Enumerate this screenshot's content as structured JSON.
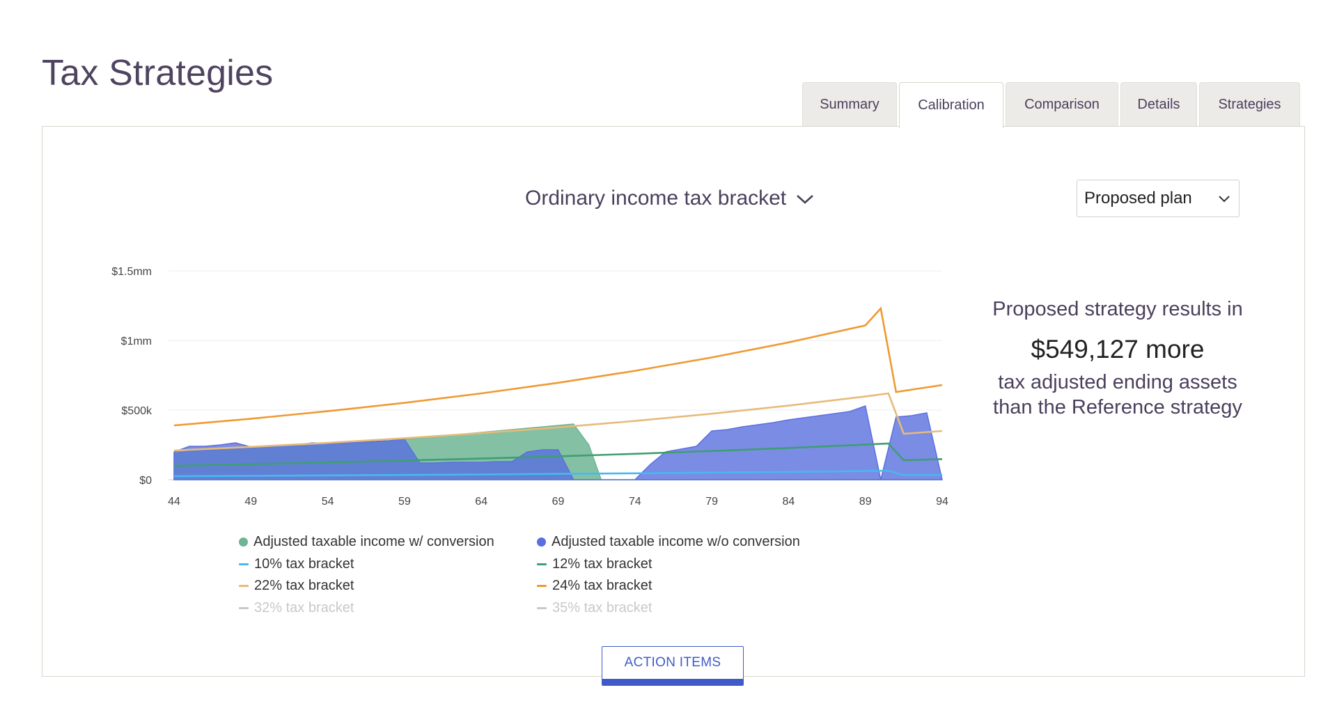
{
  "page": {
    "title": "Tax Strategies"
  },
  "tabs": [
    {
      "label": "Summary",
      "active": false
    },
    {
      "label": "Calibration",
      "active": true
    },
    {
      "label": "Comparison",
      "active": false
    },
    {
      "label": "Details",
      "active": false
    },
    {
      "label": "Strategies",
      "active": false
    }
  ],
  "chart_header": {
    "title": "Ordinary income tax bracket",
    "icon": "chevron-down-icon"
  },
  "plan_select": {
    "value": "Proposed plan",
    "icon": "chevron-down-icon"
  },
  "result": {
    "line1": "Proposed strategy results in",
    "amount": "$549,127 more",
    "line2": "tax adjusted ending assets",
    "line3": "than the Reference strategy"
  },
  "action_button": {
    "label": "ACTION ITEMS"
  },
  "colors": {
    "with_conversion": "#6fb594",
    "without_conversion": "#5a6fdf",
    "bracket_10": "#47b8f0",
    "bracket_12": "#3f9e72",
    "bracket_22": "#e6bb7a",
    "bracket_24": "#ee9a32",
    "disabled": "#c8c8c8"
  },
  "chart_data": {
    "type": "area",
    "ylim": [
      0,
      1500000
    ],
    "xlim": [
      44,
      94
    ],
    "yticks": [
      {
        "value": 0,
        "label": "$0"
      },
      {
        "value": 500000,
        "label": "$500k"
      },
      {
        "value": 1000000,
        "label": "$1mm"
      },
      {
        "value": 1500000,
        "label": "$1.5mm"
      }
    ],
    "xticks": [
      "44",
      "49",
      "54",
      "59",
      "64",
      "69",
      "74",
      "79",
      "84",
      "89",
      "94"
    ],
    "grid": true,
    "legend_position": "bottom",
    "legend": [
      {
        "label": "Adjusted taxable income w/ conversion",
        "marker": "dot",
        "color": "#6fb594",
        "enabled": true
      },
      {
        "label": "Adjusted taxable income w/o conversion",
        "marker": "dot",
        "color": "#5a6fdf",
        "enabled": true
      },
      {
        "label": "10% tax bracket",
        "marker": "line",
        "color": "#47b8f0",
        "enabled": true
      },
      {
        "label": "12% tax bracket",
        "marker": "line",
        "color": "#3f9e72",
        "enabled": true
      },
      {
        "label": "22% tax bracket",
        "marker": "line",
        "color": "#e6bb7a",
        "enabled": true
      },
      {
        "label": "24% tax bracket",
        "marker": "line",
        "color": "#ee9a32",
        "enabled": true
      },
      {
        "label": "32% tax bracket",
        "marker": "line",
        "color": "#c8c8c8",
        "enabled": false
      },
      {
        "label": "35% tax bracket",
        "marker": "line",
        "color": "#c8c8c8",
        "enabled": false
      }
    ],
    "series": [
      {
        "name": "Adjusted taxable income w/ conversion",
        "kind": "area",
        "color": "#6fb594",
        "points": [
          [
            44,
            190000
          ],
          [
            45,
            205000
          ],
          [
            46,
            210000
          ],
          [
            47,
            215000
          ],
          [
            48,
            220000
          ],
          [
            49,
            225000
          ],
          [
            50,
            230000
          ],
          [
            51,
            235000
          ],
          [
            52,
            240000
          ],
          [
            53,
            245000
          ],
          [
            54,
            250000
          ],
          [
            55,
            255000
          ],
          [
            56,
            262000
          ],
          [
            57,
            270000
          ],
          [
            58,
            280000
          ],
          [
            59,
            290000
          ],
          [
            60,
            300000
          ],
          [
            61,
            310000
          ],
          [
            62,
            320000
          ],
          [
            63,
            330000
          ],
          [
            64,
            340000
          ],
          [
            65,
            350000
          ],
          [
            66,
            360000
          ],
          [
            67,
            370000
          ],
          [
            68,
            380000
          ],
          [
            69,
            390000
          ],
          [
            70,
            400000
          ],
          [
            71,
            250000
          ],
          [
            71.8,
            0
          ],
          [
            94,
            0
          ]
        ]
      },
      {
        "name": "Adjusted taxable income w/o conversion",
        "kind": "area",
        "color": "#5a6fdf",
        "points": [
          [
            44,
            200000
          ],
          [
            45,
            240000
          ],
          [
            46,
            240000
          ],
          [
            47,
            250000
          ],
          [
            48,
            265000
          ],
          [
            49,
            235000
          ],
          [
            50,
            240000
          ],
          [
            51,
            245000
          ],
          [
            52,
            250000
          ],
          [
            53,
            265000
          ],
          [
            54,
            260000
          ],
          [
            55,
            265000
          ],
          [
            56,
            270000
          ],
          [
            57,
            275000
          ],
          [
            58,
            280000
          ],
          [
            59,
            290000
          ],
          [
            60,
            120000
          ],
          [
            61,
            120000
          ],
          [
            62,
            125000
          ],
          [
            63,
            125000
          ],
          [
            64,
            125000
          ],
          [
            65,
            130000
          ],
          [
            66,
            130000
          ],
          [
            67,
            200000
          ],
          [
            68,
            215000
          ],
          [
            69,
            215000
          ],
          [
            70,
            0
          ],
          [
            71,
            0
          ],
          [
            72,
            0
          ],
          [
            73,
            0
          ],
          [
            74,
            0
          ],
          [
            75,
            110000
          ],
          [
            76,
            200000
          ],
          [
            77,
            220000
          ],
          [
            78,
            240000
          ],
          [
            79,
            350000
          ],
          [
            80,
            360000
          ],
          [
            81,
            380000
          ],
          [
            82,
            395000
          ],
          [
            83,
            410000
          ],
          [
            84,
            430000
          ],
          [
            85,
            445000
          ],
          [
            86,
            460000
          ],
          [
            87,
            475000
          ],
          [
            88,
            490000
          ],
          [
            89,
            530000
          ],
          [
            90,
            0
          ],
          [
            91,
            450000
          ],
          [
            92,
            460000
          ],
          [
            93,
            480000
          ],
          [
            94,
            0
          ]
        ]
      },
      {
        "name": "10% tax bracket",
        "kind": "line",
        "color": "#47b8f0",
        "points": [
          [
            44,
            25000
          ],
          [
            49,
            28000
          ],
          [
            54,
            31000
          ],
          [
            59,
            34000
          ],
          [
            64,
            38000
          ],
          [
            69,
            42000
          ],
          [
            74,
            46000
          ],
          [
            79,
            51000
          ],
          [
            84,
            56000
          ],
          [
            89,
            62000
          ],
          [
            90.5,
            65000
          ],
          [
            91.5,
            33000
          ],
          [
            94,
            35000
          ]
        ]
      },
      {
        "name": "12% tax bracket",
        "kind": "line",
        "color": "#3f9e72",
        "points": [
          [
            44,
            100000
          ],
          [
            49,
            112000
          ],
          [
            54,
            124000
          ],
          [
            59,
            138000
          ],
          [
            64,
            152000
          ],
          [
            69,
            168000
          ],
          [
            74,
            186000
          ],
          [
            79,
            206000
          ],
          [
            84,
            228000
          ],
          [
            89,
            252000
          ],
          [
            90.5,
            260000
          ],
          [
            91.5,
            140000
          ],
          [
            94,
            148000
          ]
        ]
      },
      {
        "name": "22% tax bracket",
        "kind": "line",
        "color": "#e6bb7a",
        "points": [
          [
            44,
            210000
          ],
          [
            49,
            236000
          ],
          [
            54,
            265000
          ],
          [
            59,
            298000
          ],
          [
            64,
            335000
          ],
          [
            69,
            376000
          ],
          [
            74,
            422000
          ],
          [
            79,
            474000
          ],
          [
            84,
            532000
          ],
          [
            89,
            598000
          ],
          [
            90.5,
            620000
          ],
          [
            91.5,
            330000
          ],
          [
            94,
            350000
          ]
        ]
      },
      {
        "name": "24% tax bracket",
        "kind": "line",
        "color": "#ee9a32",
        "points": [
          [
            44,
            390000
          ],
          [
            49,
            438000
          ],
          [
            54,
            492000
          ],
          [
            59,
            552000
          ],
          [
            64,
            620000
          ],
          [
            69,
            696000
          ],
          [
            74,
            782000
          ],
          [
            79,
            878000
          ],
          [
            84,
            986000
          ],
          [
            89,
            1108000
          ],
          [
            90,
            1230000
          ],
          [
            91,
            630000
          ],
          [
            94,
            680000
          ]
        ]
      }
    ]
  }
}
